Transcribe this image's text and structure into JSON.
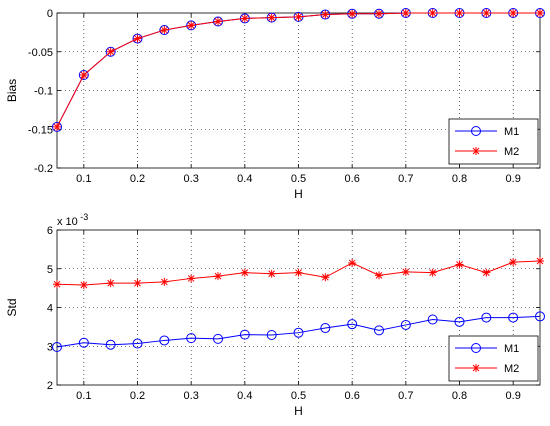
{
  "chart_data": [
    {
      "type": "line",
      "xlabel": "H",
      "ylabel": "Bias",
      "xlim": [
        0.05,
        0.95
      ],
      "ylim": [
        -0.2,
        0
      ],
      "xticks": [
        0.1,
        0.2,
        0.3,
        0.4,
        0.5,
        0.6,
        0.7,
        0.8,
        0.9
      ],
      "xtick_labels": [
        "0.1",
        "0.2",
        "0.3",
        "0.4",
        "0.5",
        "0.6",
        "0.7",
        "0.8",
        "0.9"
      ],
      "yticks": [
        -0.2,
        -0.15,
        -0.1,
        -0.05,
        0
      ],
      "ytick_labels": [
        "-0.2",
        "-0.15",
        "-0.1",
        "-0.05",
        "0"
      ],
      "grid": true,
      "legend_position": "bottom-right",
      "x": [
        0.05,
        0.1,
        0.15,
        0.2,
        0.25,
        0.3,
        0.35,
        0.4,
        0.45,
        0.5,
        0.55,
        0.6,
        0.65,
        0.7,
        0.75,
        0.8,
        0.85,
        0.9,
        0.95
      ],
      "series": [
        {
          "name": "M1",
          "color": "#0000ff",
          "marker": "circle",
          "values": [
            -0.147,
            -0.08,
            -0.05,
            -0.033,
            -0.022,
            -0.016,
            -0.011,
            -0.007,
            -0.006,
            -0.005,
            -0.002,
            -0.001,
            -0.001,
            0.0,
            0.0,
            0.0,
            0.0,
            0.0,
            0.0
          ]
        },
        {
          "name": "M2",
          "color": "#ff0000",
          "marker": "star",
          "values": [
            -0.147,
            -0.08,
            -0.05,
            -0.033,
            -0.022,
            -0.016,
            -0.011,
            -0.007,
            -0.006,
            -0.005,
            -0.002,
            -0.001,
            -0.001,
            0.0,
            0.0,
            0.0,
            0.0,
            0.0,
            0.0
          ]
        }
      ]
    },
    {
      "type": "line",
      "xlabel": "H",
      "ylabel": "Std",
      "exponent_label": "x 10",
      "exponent_power": "-3",
      "xlim": [
        0.05,
        0.95
      ],
      "ylim": [
        2,
        6
      ],
      "xticks": [
        0.1,
        0.2,
        0.3,
        0.4,
        0.5,
        0.6,
        0.7,
        0.8,
        0.9
      ],
      "xtick_labels": [
        "0.1",
        "0.2",
        "0.3",
        "0.4",
        "0.5",
        "0.6",
        "0.7",
        "0.8",
        "0.9"
      ],
      "yticks": [
        2,
        3,
        4,
        5,
        6
      ],
      "ytick_labels": [
        "2",
        "3",
        "4",
        "5",
        "6"
      ],
      "grid": true,
      "legend_position": "bottom-right",
      "x": [
        0.05,
        0.1,
        0.15,
        0.2,
        0.25,
        0.3,
        0.35,
        0.4,
        0.45,
        0.5,
        0.55,
        0.6,
        0.65,
        0.7,
        0.75,
        0.8,
        0.85,
        0.9,
        0.95
      ],
      "series": [
        {
          "name": "M1",
          "color": "#0000ff",
          "marker": "circle",
          "values": [
            2.98,
            3.09,
            3.04,
            3.07,
            3.15,
            3.21,
            3.19,
            3.3,
            3.29,
            3.35,
            3.47,
            3.57,
            3.41,
            3.55,
            3.69,
            3.63,
            3.74,
            3.74,
            3.77
          ]
        },
        {
          "name": "M2",
          "color": "#ff0000",
          "marker": "star",
          "values": [
            4.6,
            4.58,
            4.63,
            4.63,
            4.66,
            4.75,
            4.81,
            4.9,
            4.87,
            4.9,
            4.78,
            5.15,
            4.83,
            4.92,
            4.9,
            5.11,
            4.9,
            5.17,
            5.2
          ]
        }
      ]
    }
  ]
}
